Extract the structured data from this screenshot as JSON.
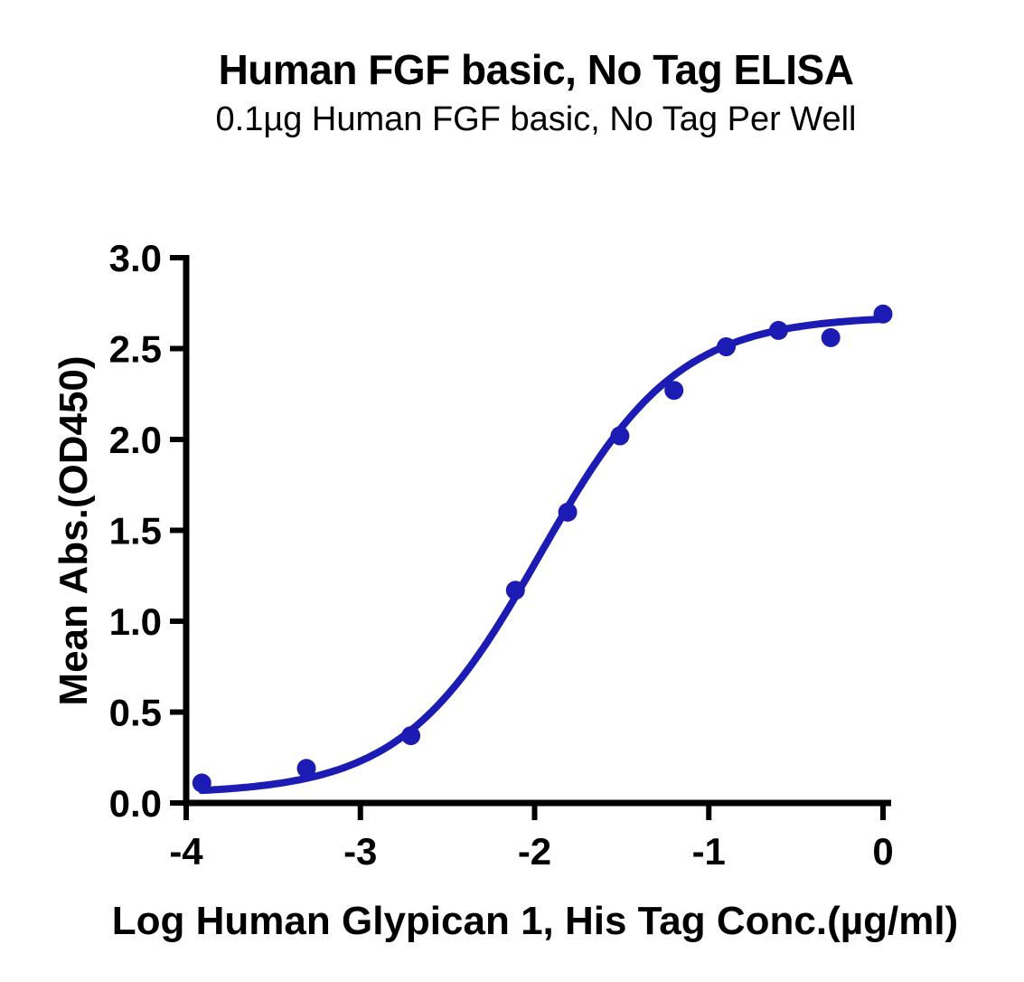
{
  "chart_data": {
    "type": "scatter",
    "title": "Human FGF basic, No Tag ELISA",
    "subtitle": "0.1µg Human FGF basic, No Tag Per Well",
    "xlabel": "Log Human Glypican 1, His Tag Conc.(µg/ml)",
    "ylabel": "Mean Abs.(OD450)",
    "xlim": [
      -4,
      0
    ],
    "ylim": [
      0,
      3
    ],
    "x_ticks": [
      -4,
      -3,
      -2,
      -1,
      0
    ],
    "x_tick_labels": [
      "-4",
      "-3",
      "-2",
      "-1",
      "0"
    ],
    "y_ticks": [
      0,
      0.5,
      1,
      1.5,
      2,
      2.5,
      3
    ],
    "y_tick_labels": [
      "0.0",
      "0.5",
      "1.0",
      "1.5",
      "2.0",
      "2.5",
      "3.0"
    ],
    "grid": false,
    "legend_position": "none",
    "colors": {
      "series": "#1c1cb4",
      "axis": "#000000"
    },
    "series": [
      {
        "marker": "circle",
        "x": [
          -3.91,
          -3.31,
          -2.71,
          -2.11,
          -1.81,
          -1.51,
          -1.2,
          -0.9,
          -0.6,
          -0.3,
          0.0
        ],
        "y": [
          0.11,
          0.19,
          0.37,
          1.17,
          1.6,
          2.02,
          2.27,
          2.51,
          2.6,
          2.56,
          2.69
        ]
      }
    ],
    "fit_curve": {
      "model": "4PL",
      "bottom": 0.05,
      "top": 2.68,
      "log_ec50": -1.97,
      "hill": 1.1,
      "x_start": -3.91,
      "x_end": 0
    }
  }
}
